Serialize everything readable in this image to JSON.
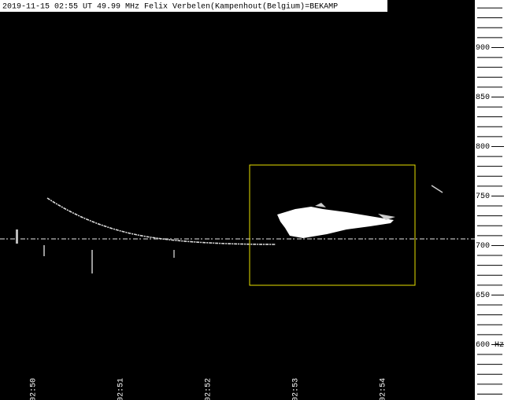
{
  "chart_data": {
    "type": "spectrogram",
    "title": "2019-11-15 02:55 UT 49.99 MHz Felix Verbelen(Kampenhout(Belgium)=BEKAMP",
    "x_labels": [
      "02:50",
      "02:51",
      "02:52",
      "02:53",
      "02:54"
    ],
    "ylim": [
      544,
      948
    ],
    "yticks": [
      {
        "value": 600,
        "label": "600 Hz"
      },
      650,
      700,
      750,
      800,
      850,
      900
    ]
  }
}
